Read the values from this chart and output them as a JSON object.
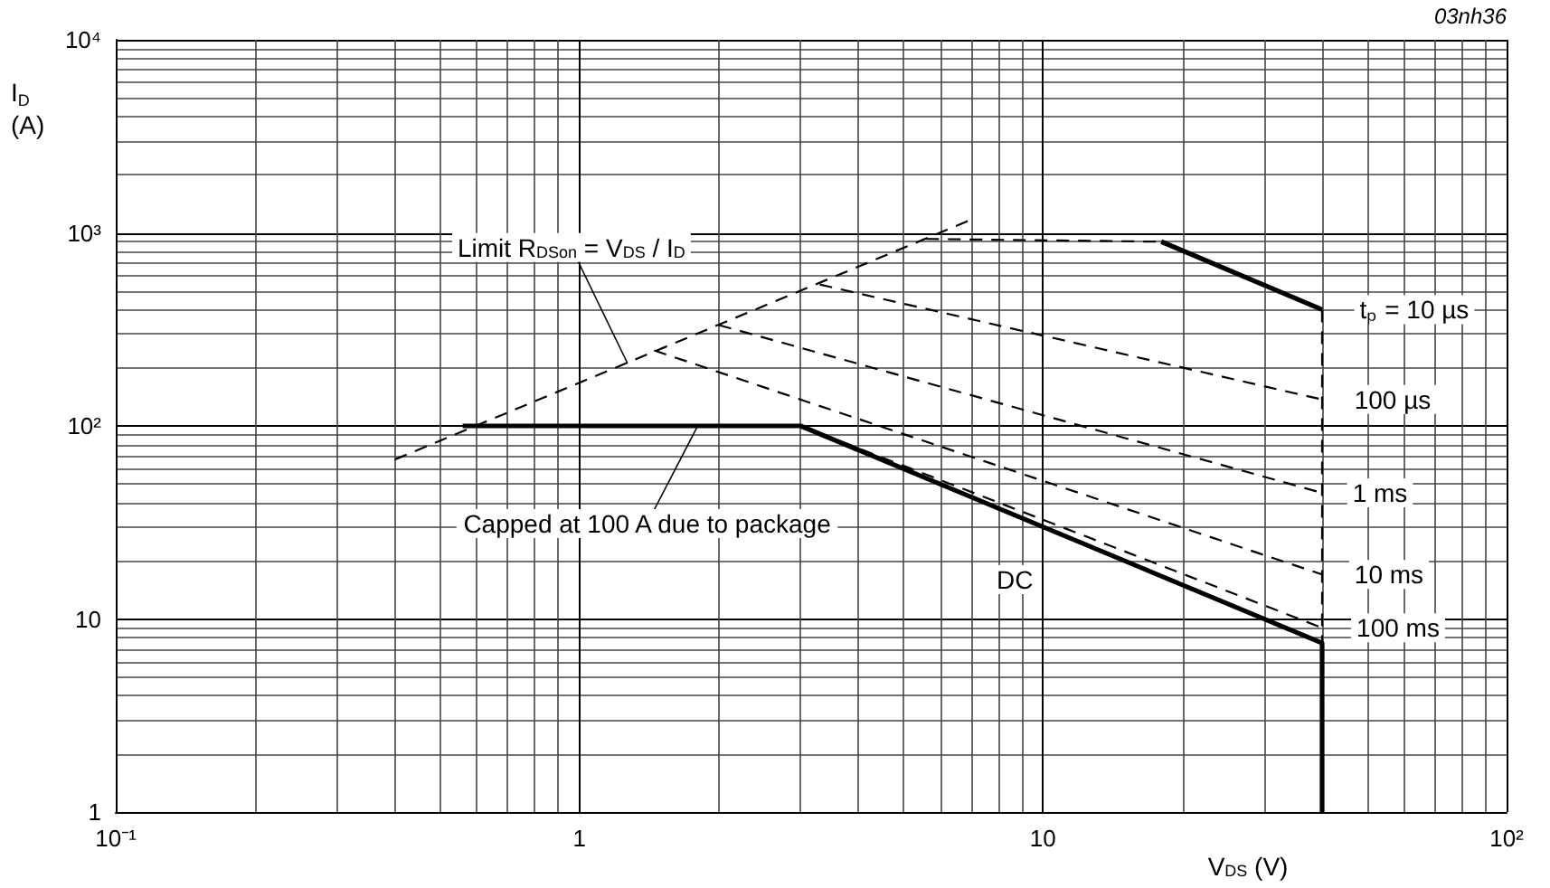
{
  "chart_data": {
    "type": "line",
    "xlabel": "V$_{DS}$ (V)",
    "ylabel": "I$_{D}$ (A)",
    "log": "xy",
    "grid": true,
    "xlim": [
      0.1,
      100
    ],
    "ylim": [
      1,
      10000
    ],
    "xticks": [
      {
        "value": 0.1,
        "label": "10⁻¹"
      },
      1,
      10,
      {
        "value": 100,
        "label": "10²"
      }
    ],
    "yticks": [
      1,
      10,
      {
        "value": 100,
        "label": "10²"
      },
      {
        "value": 1000,
        "label": "10³"
      },
      {
        "value": 10000,
        "label": "10⁴"
      }
    ],
    "series": [
      {
        "color": "#000000",
        "line_style": "dashed",
        "x": [
          0.4,
          7
        ],
        "values": [
          67,
          1170
        ]
      },
      {
        "color": "#000000",
        "line_style": "dashed",
        "x": [
          5.6,
          18
        ],
        "values": [
          930,
          900
        ]
      },
      {
        "color": "#000000",
        "line_style": "solid",
        "x": [
          18,
          40
        ],
        "values": [
          900,
          400
        ]
      },
      {
        "color": "#000000",
        "line_style": "dashed",
        "x": [
          40,
          40
        ],
        "values": [
          400,
          7.5
        ]
      },
      {
        "color": "#000000",
        "line_style": "dashed",
        "x": [
          3.3,
          40
        ],
        "values": [
          540,
          137
        ]
      },
      {
        "color": "#000000",
        "line_style": "dashed",
        "x": [
          2,
          40
        ],
        "values": [
          333,
          45
        ]
      },
      {
        "color": "#000000",
        "line_style": "dashed",
        "x": [
          1.45,
          40
        ],
        "values": [
          246,
          17
        ]
      },
      {
        "color": "#000000",
        "line_style": "dashed",
        "x": [
          3,
          40
        ],
        "values": [
          100,
          9
        ]
      },
      {
        "color": "#000000",
        "line_style": "solid",
        "x": [
          0.56,
          3,
          40,
          40
        ],
        "values": [
          100,
          100,
          7.5,
          1
        ]
      }
    ],
    "annotations": [
      {
        "text": "Limit R$_{DSon}$ = V$_{DS}$ / I$_{D}$",
        "x": 1.27,
        "y": 211
      },
      {
        "text": "Capped at 100 A due to package",
        "x": 1.8,
        "y": 100
      },
      {
        "text": "tₚ = 10 µs",
        "x": 40,
        "y": 400
      },
      {
        "text": "100 µs",
        "x": 40,
        "y": 137
      },
      {
        "text": "1 ms",
        "x": 40,
        "y": 45
      },
      {
        "text": "10 ms",
        "x": 40,
        "y": 17
      },
      {
        "text": "100 ms",
        "x": 40,
        "y": 9
      },
      {
        "text": "DC",
        "x": 10.6,
        "y": 28
      },
      "03nh36"
    ]
  }
}
